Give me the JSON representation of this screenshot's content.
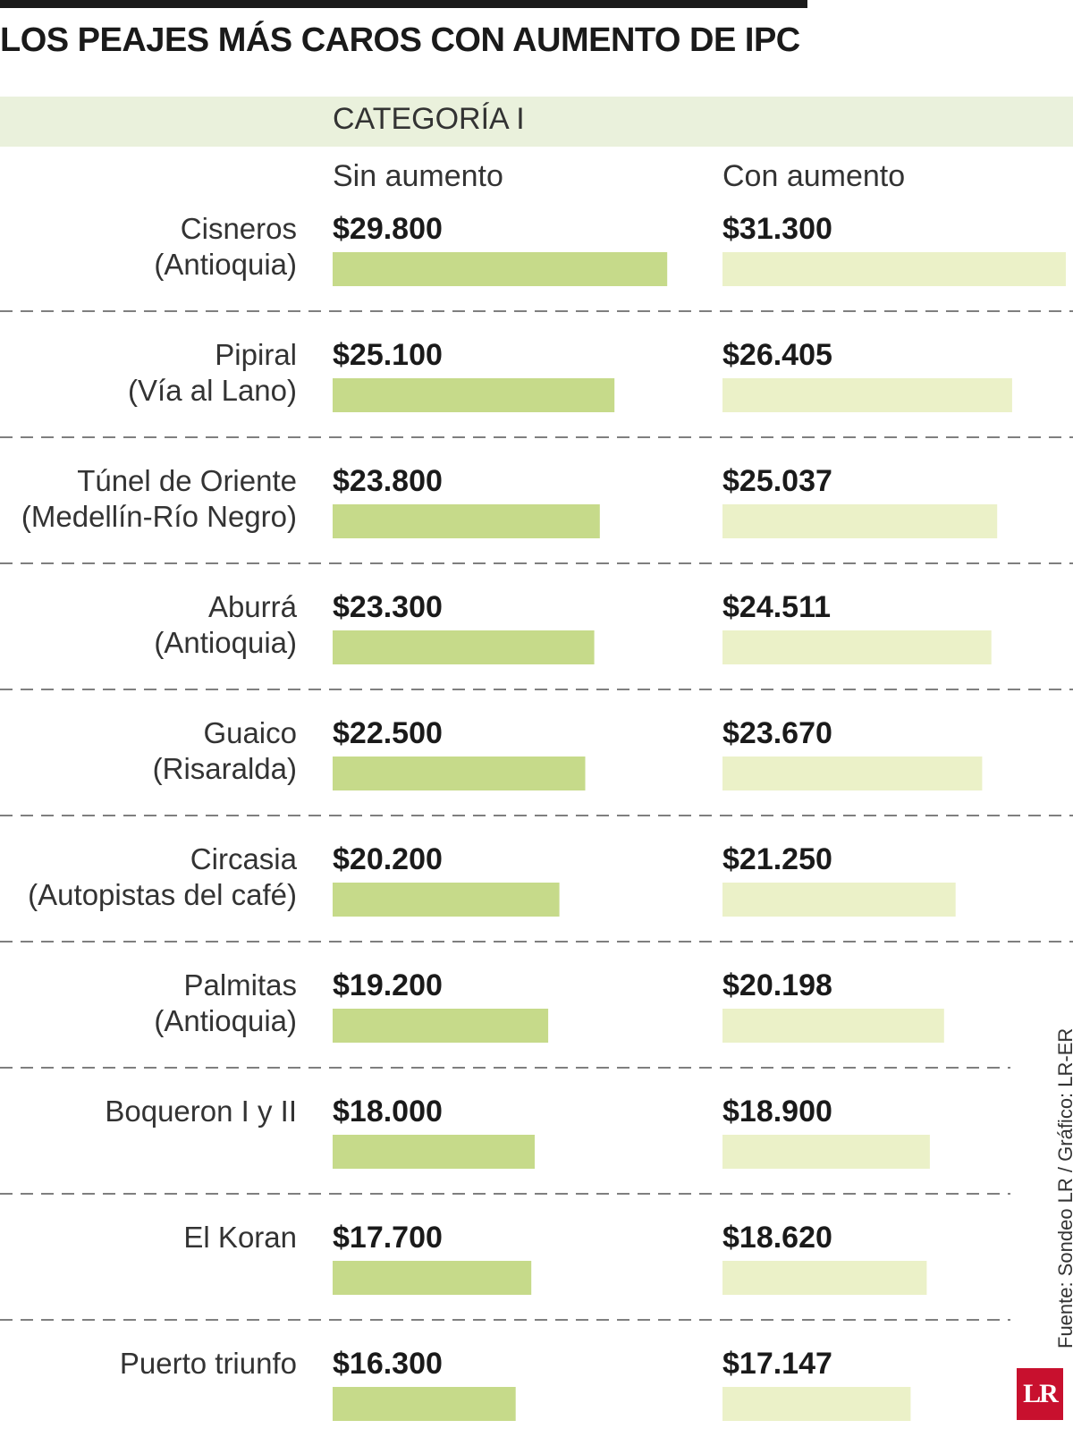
{
  "title": "LOS PEAJES MÁS CAROS CON AUMENTO DE IPC",
  "category": "CATEGORÍA I",
  "source": "Fuente: Sondeo LR / Gráfico: LR-ER",
  "logo": "LR",
  "colors": {
    "bar_sin": "#c6da8a",
    "bar_con": "#ebf1c8",
    "band": "#eaf1dc",
    "divider": "#555555"
  },
  "chart_data": {
    "type": "bar",
    "orientation": "horizontal",
    "categories": [
      [
        "Cisneros",
        "(Antioquia)"
      ],
      [
        "Pipiral",
        "(Vía al Lano)"
      ],
      [
        "Túnel de Oriente",
        "(Medellín-Río Negro)"
      ],
      [
        "Aburrá",
        "(Antioquia)"
      ],
      [
        "Guaico",
        "(Risaralda)"
      ],
      [
        "Circasia",
        "(Autopistas del café)"
      ],
      [
        "Palmitas",
        "(Antioquia)"
      ],
      [
        "Boqueron I y II"
      ],
      [
        "El Koran"
      ],
      [
        "Puerto triunfo"
      ]
    ],
    "series": [
      {
        "name": "Sin aumento",
        "values": [
          29800,
          25100,
          23800,
          23300,
          22500,
          20200,
          19200,
          18000,
          17700,
          16300
        ],
        "labels": [
          "$29.800",
          "$25.100",
          "$23.800",
          "$23.300",
          "$22.500",
          "$20.200",
          "$19.200",
          "$18.000",
          "$17.700",
          "$16.300"
        ]
      },
      {
        "name": "Con aumento",
        "values": [
          31300,
          26405,
          25037,
          24511,
          23670,
          21250,
          20198,
          18900,
          18620,
          17147
        ],
        "labels": [
          "$31.300",
          "$26.405",
          "$25.037",
          "$24.511",
          "$23.670",
          "$21.250",
          "$20.198",
          "$18.900",
          "$18.620",
          "$17.147"
        ]
      }
    ],
    "xlim": [
      0,
      31300
    ],
    "grid": false,
    "legend": "column headers"
  }
}
